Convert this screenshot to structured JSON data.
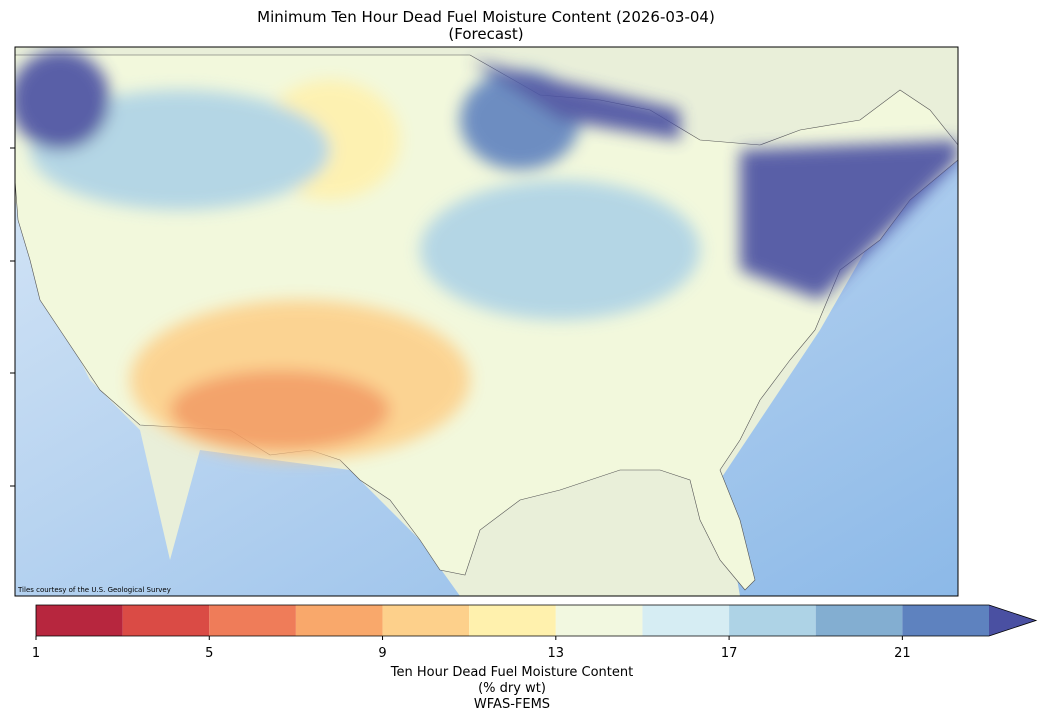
{
  "title": [
    "Minimum Ten Hour Dead Fuel Moisture Content (2026-03-04)",
    "(Forecast)"
  ],
  "attribution": "Tiles courtesy of the U.S. Geological Survey",
  "colorbar": {
    "bounds": [
      1,
      3,
      5,
      7,
      9,
      11,
      13,
      15,
      17,
      19,
      21,
      23
    ],
    "colors": [
      "#b7263e",
      "#da4b45",
      "#ef7c59",
      "#f9a86b",
      "#fdd08b",
      "#fff1ad",
      "#f2f8e0",
      "#d6edf3",
      "#aed3e6",
      "#83aed1",
      "#5e82bf"
    ],
    "extend_color": "#4a50a2",
    "ticks": [
      1,
      5,
      9,
      13,
      17,
      21
    ],
    "label": [
      "Ten Hour Dead Fuel Moisture Content",
      "(% dry wt)",
      "WFAS-FEMS"
    ]
  }
}
